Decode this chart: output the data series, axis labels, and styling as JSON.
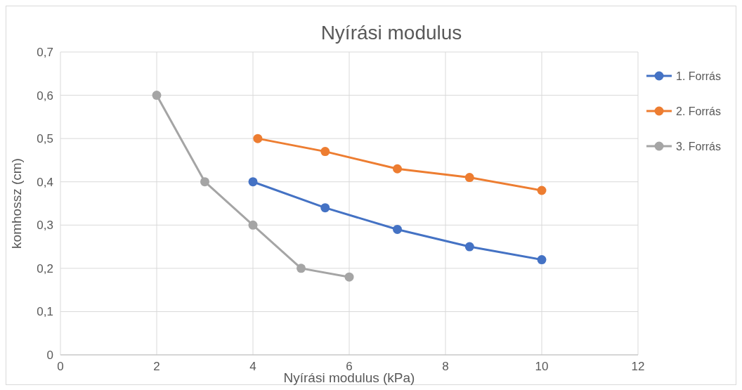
{
  "chart_data": {
    "type": "line",
    "title": "Nyírási modulus",
    "xlabel": "Nyírási modulus (kPa)",
    "ylabel": "komhossz (cm)",
    "xlim": [
      0,
      12
    ],
    "xticks": [
      0,
      2,
      4,
      6,
      8,
      10,
      12
    ],
    "ylim": [
      0,
      0.7
    ],
    "yticks": [
      {
        "value": 0,
        "label": "0"
      },
      {
        "value": 0.1,
        "label": "0,1"
      },
      {
        "value": 0.2,
        "label": "0,2"
      },
      {
        "value": 0.3,
        "label": "0,3"
      },
      {
        "value": 0.4,
        "label": "0,4"
      },
      {
        "value": 0.5,
        "label": "0,5"
      },
      {
        "value": 0.6,
        "label": "0,6"
      },
      {
        "value": 0.7,
        "label": "0,7"
      }
    ],
    "grid": true,
    "legend": "right",
    "marker": "circle",
    "line_style": "solid",
    "series": [
      {
        "name": "1. Forrás",
        "color": "#4472c4",
        "x": [
          4,
          5.5,
          7,
          8.5,
          10
        ],
        "values": [
          0.4,
          0.34,
          0.29,
          0.25,
          0.22
        ]
      },
      {
        "name": "2. Forrás",
        "color": "#ed7d31",
        "x": [
          4.1,
          5.5,
          7,
          8.5,
          10
        ],
        "values": [
          0.5,
          0.47,
          0.43,
          0.41,
          0.38
        ]
      },
      {
        "name": "3. Forrás",
        "color": "#a5a5a5",
        "x": [
          2,
          3,
          4,
          5,
          6
        ],
        "values": [
          0.6,
          0.4,
          0.3,
          0.2,
          0.18
        ]
      }
    ]
  }
}
